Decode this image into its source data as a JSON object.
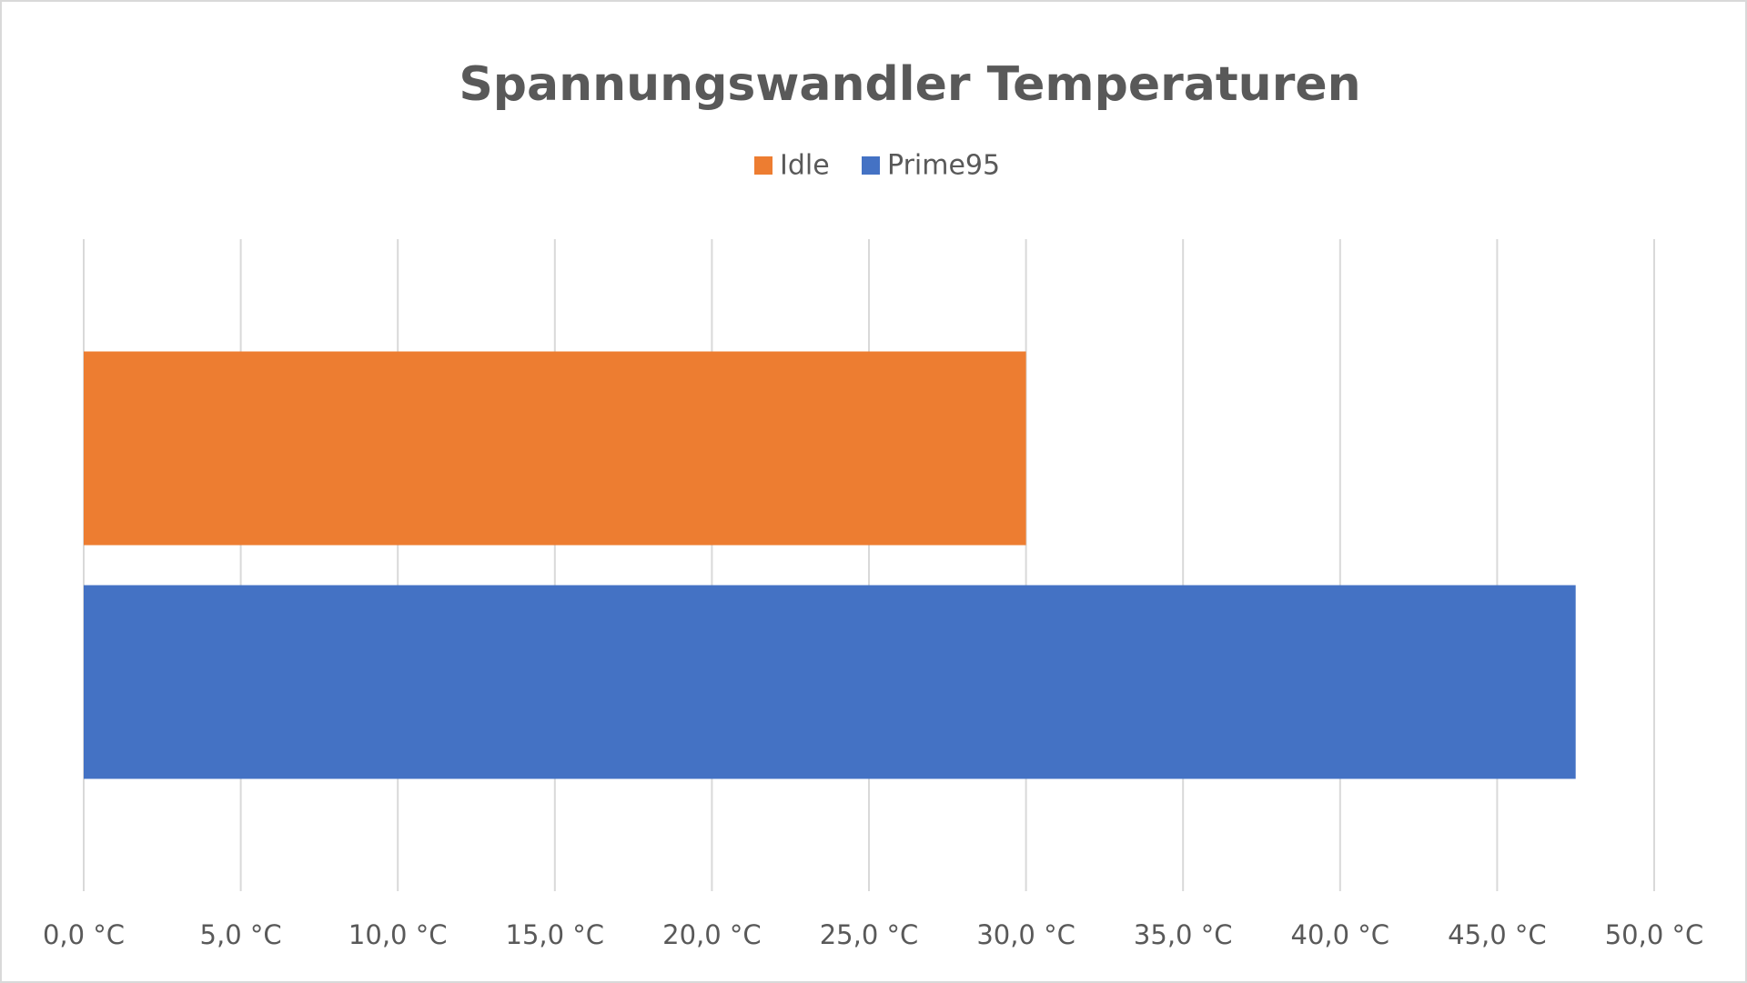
{
  "chart_data": {
    "type": "hbar",
    "title": "Spannungswandler Temperaturen",
    "categories": [
      null
    ],
    "series": [
      {
        "name": "Idle",
        "color": "#ed7d31",
        "values": [
          30.0
        ]
      },
      {
        "name": "Prime95",
        "color": "#4472c4",
        "values": [
          47.5
        ]
      }
    ],
    "xlim": [
      0,
      50
    ],
    "xticks": [
      {
        "value": 0,
        "label": "0,0 °C"
      },
      {
        "value": 5,
        "label": "5,0 °C"
      },
      {
        "value": 10,
        "label": "10,0 °C"
      },
      {
        "value": 15,
        "label": "15,0 °C"
      },
      {
        "value": 20,
        "label": "20,0 °C"
      },
      {
        "value": 25,
        "label": "25,0 °C"
      },
      {
        "value": 30,
        "label": "30,0 °C"
      },
      {
        "value": 35,
        "label": "35,0 °C"
      },
      {
        "value": 40,
        "label": "40,0 °C"
      },
      {
        "value": 45,
        "label": "45,0 °C"
      },
      {
        "value": 50,
        "label": "50,0 °C"
      }
    ],
    "grid": true,
    "legend": "top"
  }
}
